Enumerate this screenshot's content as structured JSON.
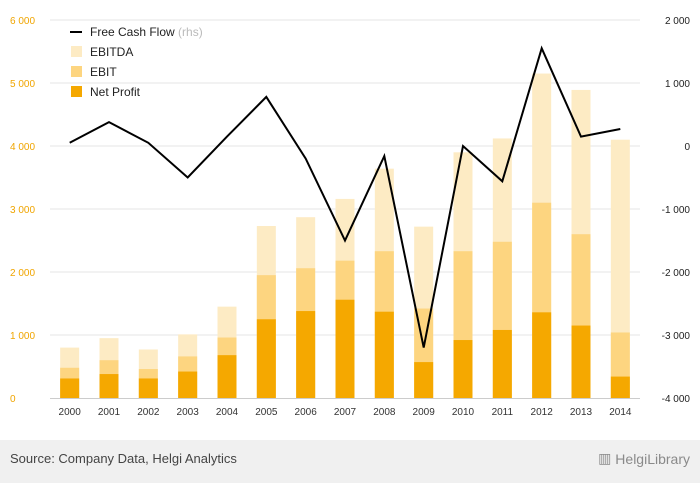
{
  "chart_data": {
    "type": "bar",
    "categories": [
      "2000",
      "2001",
      "2002",
      "2003",
      "2004",
      "2005",
      "2006",
      "2007",
      "2008",
      "2009",
      "2010",
      "2011",
      "2012",
      "2013",
      "2014"
    ],
    "series": [
      {
        "name": "EBITDA",
        "kind": "bar",
        "axis": "left",
        "color": "#fdebc4",
        "values": [
          800,
          950,
          770,
          1010,
          1450,
          2730,
          2870,
          3160,
          3640,
          2720,
          3900,
          4120,
          5150,
          4890,
          4100
        ]
      },
      {
        "name": "EBIT",
        "kind": "bar",
        "axis": "left",
        "color": "#fdd580",
        "values": [
          480,
          600,
          460,
          660,
          960,
          1950,
          2060,
          2180,
          2330,
          1420,
          2330,
          2480,
          3100,
          2600,
          1040
        ]
      },
      {
        "name": "Net Profit",
        "kind": "bar",
        "axis": "left",
        "color": "#f5a800",
        "values": [
          310,
          380,
          310,
          420,
          680,
          1250,
          1380,
          1560,
          1370,
          570,
          920,
          1080,
          1360,
          1150,
          340
        ]
      },
      {
        "name": "Free Cash Flow",
        "name_suffix": "(rhs)",
        "kind": "line",
        "axis": "right",
        "color": "#000000",
        "values": [
          50,
          380,
          50,
          -500,
          150,
          780,
          -200,
          -1500,
          -160,
          -3200,
          0,
          -560,
          1550,
          150,
          270
        ]
      }
    ],
    "y_left": {
      "min": 0,
      "max": 6000,
      "ticks": [
        0,
        1000,
        2000,
        3000,
        4000,
        5000,
        6000
      ],
      "tick_labels": [
        "0",
        "1 000",
        "2 000",
        "3 000",
        "4 000",
        "5 000",
        "6 000"
      ]
    },
    "y_right": {
      "min": -4000,
      "max": 2000,
      "ticks": [
        -4000,
        -3000,
        -2000,
        -1000,
        0,
        1000,
        2000
      ],
      "tick_labels": [
        "-4 000",
        "-3 000",
        "-2 000",
        "-1 000",
        "0",
        "1 000",
        "2 000"
      ]
    },
    "title": "",
    "xlabel": "",
    "ylabel": "",
    "grid": true,
    "legend_position": "top-left"
  },
  "footer": {
    "source": "Source: Company Data, Helgi Analytics",
    "logo_text": "HelgiLibrary"
  }
}
